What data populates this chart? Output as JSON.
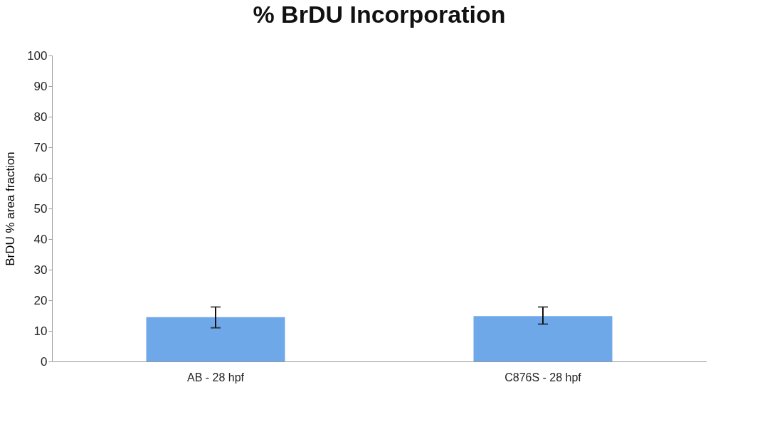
{
  "chart_data": {
    "type": "bar",
    "title": "% BrDU Incorporation",
    "ylabel": "BrDU % area fraction",
    "categories": [
      "AB - 28 hpf",
      "C876S - 28 hpf"
    ],
    "values": [
      14.5,
      14.8
    ],
    "errors": [
      [
        11,
        17.8
      ],
      [
        12.2,
        17.8
      ]
    ],
    "color": "#6fa8e8",
    "ylim": [
      0,
      100
    ],
    "yticks": [
      0,
      10,
      20,
      30,
      40,
      50,
      60,
      70,
      80,
      90,
      100
    ],
    "grid": false
  }
}
